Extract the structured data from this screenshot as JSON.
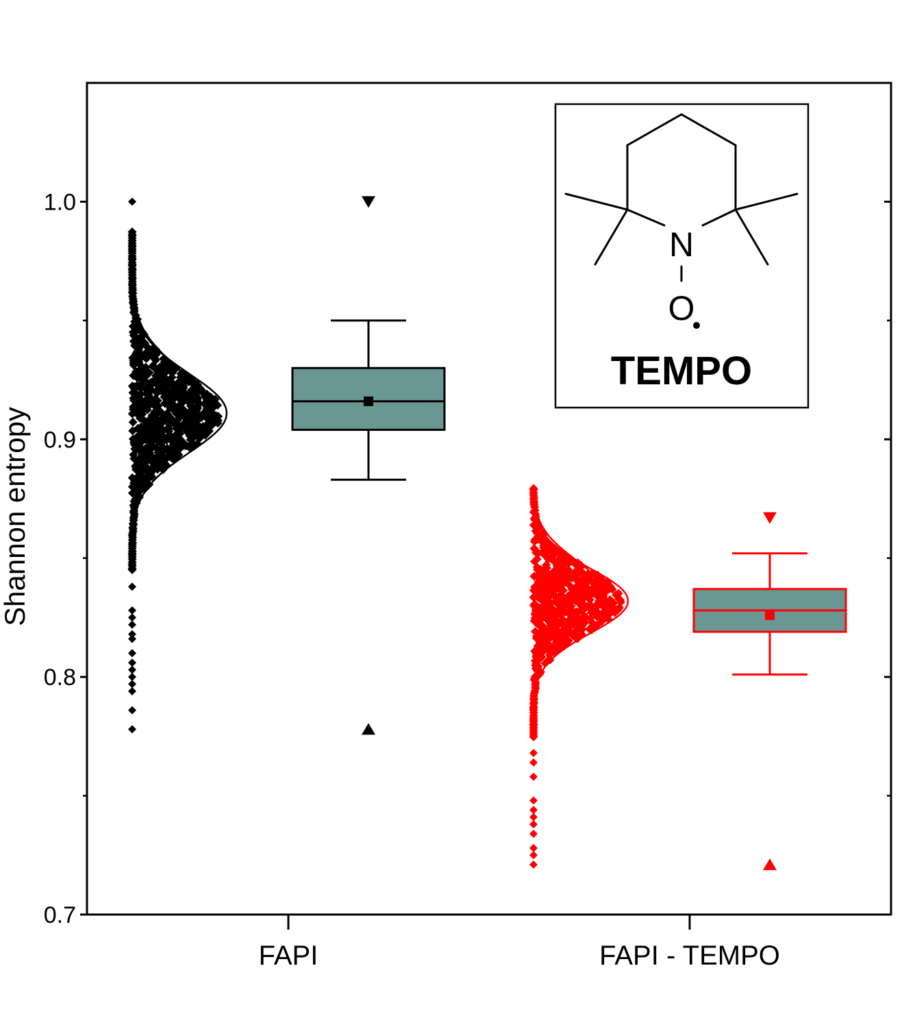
{
  "chart_data": {
    "type": "box",
    "ylabel": "Shannon entropy",
    "ylim": [
      0.7,
      1.05
    ],
    "yticks": [
      "0.7",
      "0.8",
      "0.9",
      "1.0"
    ],
    "categories": [
      "FAPI",
      "FAPI - TEMPO"
    ],
    "series": [
      {
        "color": "#000000",
        "box_fill": "#6a9694",
        "box": {
          "min": 0.883,
          "q1": 0.904,
          "median": 0.916,
          "mean": 0.916,
          "q3": 0.93,
          "max": 0.95
        },
        "outliers": {
          "low": 0.778,
          "high": 1.0
        },
        "distribution": {
          "center": 0.911,
          "spread": 0.0165,
          "lo": 0.845,
          "hi": 0.988
        },
        "extra_points": [
          1.0,
          0.838,
          0.828,
          0.825,
          0.822,
          0.818,
          0.816,
          0.81,
          0.806,
          0.803,
          0.8,
          0.797,
          0.794,
          0.786,
          0.778
        ]
      },
      {
        "color": "#ff0000",
        "box_fill": "#6a9694",
        "box": {
          "min": 0.801,
          "q1": 0.819,
          "median": 0.828,
          "mean": 0.826,
          "q3": 0.837,
          "max": 0.852
        },
        "outliers": {
          "low": 0.721,
          "high": 0.867
        },
        "distribution": {
          "center": 0.832,
          "spread": 0.0135,
          "lo": 0.775,
          "hi": 0.88
        },
        "extra_points": [
          0.768,
          0.764,
          0.758,
          0.748,
          0.744,
          0.741,
          0.738,
          0.734,
          0.728,
          0.725,
          0.721
        ]
      }
    ]
  },
  "inset": {
    "atom_n": "N",
    "atom_o": "O",
    "name": "TEMPO"
  }
}
